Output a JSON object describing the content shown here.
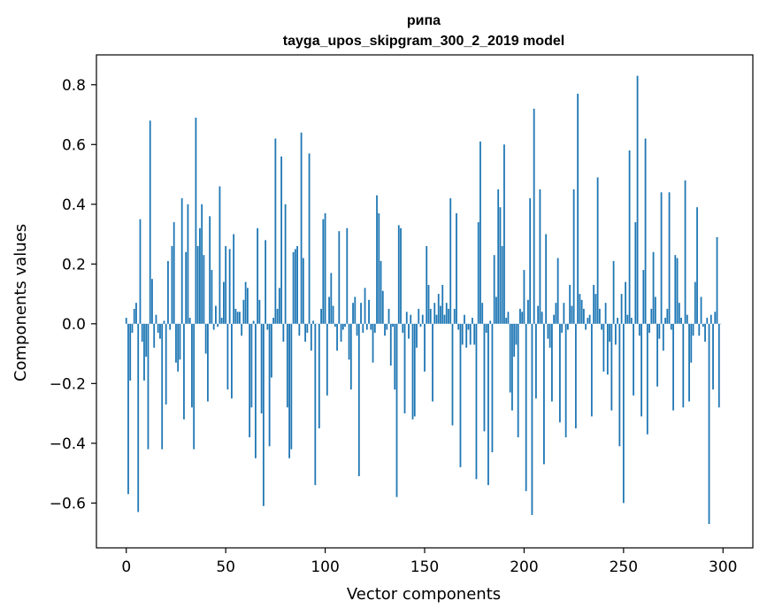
{
  "chart_data": {
    "type": "bar",
    "title": "рипа",
    "subtitle": "tayga_upos_skipgram_300_2_2019 model",
    "xlabel": "Vector components",
    "ylabel": "Components values",
    "xlim": [
      -15,
      315
    ],
    "ylim": [
      -0.75,
      0.9
    ],
    "xticks": [
      0,
      50,
      100,
      150,
      200,
      250,
      300
    ],
    "yticks": [
      -0.6,
      -0.4,
      -0.2,
      0.0,
      0.2,
      0.4,
      0.6,
      0.8
    ],
    "ytick_labels": [
      "−0.6",
      "−0.4",
      "−0.2",
      "0.0",
      "0.2",
      "0.4",
      "0.6",
      "0.8"
    ],
    "bar_color": "#1f77b4",
    "grid": false,
    "x": "0..299 (component index)",
    "values": [
      0.02,
      -0.57,
      -0.19,
      -0.03,
      0.05,
      0.07,
      -0.63,
      0.35,
      -0.06,
      -0.19,
      -0.11,
      -0.42,
      0.68,
      0.15,
      -0.08,
      0.03,
      -0.03,
      -0.05,
      -0.42,
      0.01,
      -0.27,
      0.21,
      -0.02,
      0.26,
      0.34,
      -0.13,
      -0.16,
      -0.12,
      0.42,
      -0.32,
      0.24,
      0.4,
      0.02,
      -0.28,
      -0.42,
      0.69,
      0.26,
      0.32,
      0.4,
      0.23,
      -0.1,
      -0.26,
      0.36,
      0.18,
      -0.02,
      0.06,
      -0.01,
      0.46,
      0.02,
      0.14,
      0.26,
      -0.22,
      0.25,
      -0.25,
      0.3,
      0.05,
      0.04,
      0.04,
      -0.04,
      0.08,
      0.14,
      0.12,
      -0.38,
      -0.28,
      0.01,
      -0.45,
      0.32,
      0.08,
      -0.3,
      -0.61,
      0.28,
      -0.02,
      -0.41,
      -0.18,
      0.02,
      0.62,
      0.05,
      0.12,
      0.56,
      -0.06,
      0.4,
      -0.28,
      -0.45,
      -0.42,
      0.24,
      0.25,
      0.26,
      -0.04,
      0.64,
      0.22,
      -0.06,
      -0.03,
      0.57,
      -0.09,
      0.01,
      -0.54,
      0.0,
      -0.35,
      0.05,
      0.35,
      0.37,
      -0.24,
      0.09,
      0.17,
      0.06,
      -0.01,
      -0.09,
      0.31,
      -0.06,
      -0.02,
      -0.01,
      0.32,
      -0.12,
      -0.22,
      0.07,
      0.09,
      -0.04,
      -0.51,
      0.07,
      -0.03,
      0.12,
      -0.02,
      0.08,
      -0.02,
      -0.13,
      -0.03,
      0.43,
      0.37,
      0.21,
      0.11,
      -0.04,
      -0.02,
      0.05,
      -0.14,
      -0.01,
      -0.22,
      -0.58,
      0.33,
      0.32,
      -0.03,
      -0.3,
      0.04,
      -0.05,
      0.03,
      -0.32,
      -0.31,
      -0.08,
      0.05,
      -0.01,
      0.03,
      -0.16,
      0.26,
      0.13,
      0.05,
      -0.26,
      0.07,
      0.03,
      0.1,
      0.06,
      0.13,
      0.03,
      0.07,
      0.05,
      0.42,
      -0.34,
      0.05,
      0.37,
      -0.02,
      -0.48,
      -0.07,
      0.03,
      -0.08,
      -0.02,
      -0.07,
      0.02,
      -0.07,
      -0.52,
      0.34,
      0.61,
      0.07,
      -0.36,
      -0.03,
      -0.54,
      0.01,
      -0.43,
      0.23,
      0.09,
      0.45,
      0.39,
      0.26,
      0.6,
      0.02,
      0.04,
      -0.23,
      -0.29,
      -0.11,
      -0.07,
      -0.38,
      0.05,
      0.04,
      0.18,
      -0.56,
      0.08,
      0.42,
      -0.64,
      0.72,
      -0.25,
      0.06,
      0.45,
      0.04,
      -0.47,
      0.3,
      -0.05,
      -0.08,
      -0.26,
      0.03,
      0.07,
      0.22,
      -0.33,
      -0.03,
      0.07,
      -0.38,
      -0.02,
      0.13,
      0.06,
      0.45,
      -0.35,
      0.77,
      0.1,
      0.08,
      0.05,
      -0.02,
      0.02,
      0.03,
      -0.31,
      0.13,
      0.1,
      0.49,
      0.05,
      -0.02,
      -0.16,
      0.07,
      -0.17,
      -0.06,
      -0.29,
      0.21,
      -0.07,
      0.02,
      -0.41,
      0.1,
      -0.6,
      0.14,
      0.03,
      0.58,
      0.02,
      -0.24,
      0.34,
      0.83,
      -0.04,
      -0.31,
      0.18,
      0.62,
      -0.37,
      -0.03,
      0.05,
      0.24,
      0.09,
      -0.21,
      -0.05,
      0.44,
      -0.09,
      0.02,
      0.05,
      0.44,
      -0.02,
      -0.29,
      0.23,
      0.22,
      0.07,
      0.02,
      -0.28,
      0.48,
      0.03,
      -0.26,
      -0.13,
      -0.04,
      0.14,
      0.39,
      -0.04,
      0.09,
      -0.01,
      -0.06,
      0.02,
      -0.67,
      0.03,
      -0.22,
      0.04,
      0.29,
      -0.28,
      0.0
    ]
  }
}
